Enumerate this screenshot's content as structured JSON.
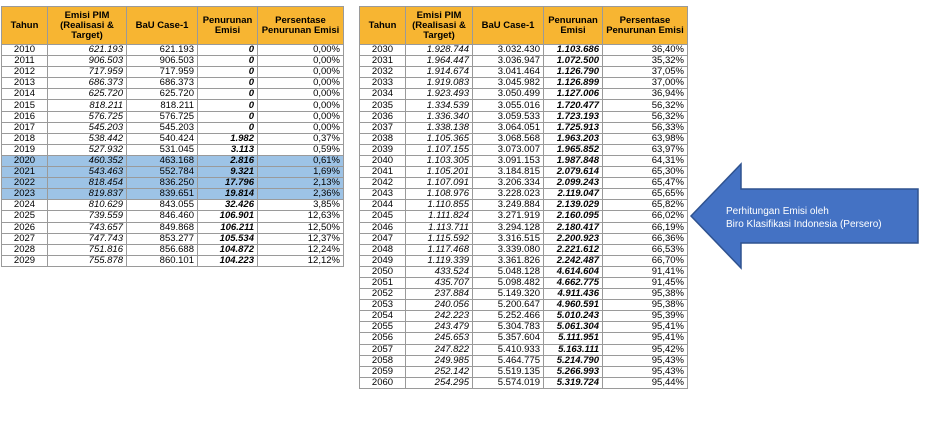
{
  "headers": {
    "tahun": "Tahun",
    "emisi": "Emisi PIM (Realisasi & Target)",
    "bau": "BaU Case-1",
    "penurunan": "Penurunan Emisi",
    "persen": "Persentase Penurunan Emisi"
  },
  "table_left": [
    {
      "tahun": "2010",
      "emisi": "621.193",
      "bau": "621.193",
      "penurunan": "0",
      "persen": "0,00%",
      "highlight": false
    },
    {
      "tahun": "2011",
      "emisi": "906.503",
      "bau": "906.503",
      "penurunan": "0",
      "persen": "0,00%",
      "highlight": false
    },
    {
      "tahun": "2012",
      "emisi": "717.959",
      "bau": "717.959",
      "penurunan": "0",
      "persen": "0,00%",
      "highlight": false
    },
    {
      "tahun": "2013",
      "emisi": "686.373",
      "bau": "686.373",
      "penurunan": "0",
      "persen": "0,00%",
      "highlight": false
    },
    {
      "tahun": "2014",
      "emisi": "625.720",
      "bau": "625.720",
      "penurunan": "0",
      "persen": "0,00%",
      "highlight": false
    },
    {
      "tahun": "2015",
      "emisi": "818.211",
      "bau": "818.211",
      "penurunan": "0",
      "persen": "0,00%",
      "highlight": false
    },
    {
      "tahun": "2016",
      "emisi": "576.725",
      "bau": "576.725",
      "penurunan": "0",
      "persen": "0,00%",
      "highlight": false
    },
    {
      "tahun": "2017",
      "emisi": "545.203",
      "bau": "545.203",
      "penurunan": "0",
      "persen": "0,00%",
      "highlight": false
    },
    {
      "tahun": "2018",
      "emisi": "538.442",
      "bau": "540.424",
      "penurunan": "1.982",
      "persen": "0,37%",
      "highlight": false
    },
    {
      "tahun": "2019",
      "emisi": "527.932",
      "bau": "531.045",
      "penurunan": "3.113",
      "persen": "0,59%",
      "highlight": false
    },
    {
      "tahun": "2020",
      "emisi": "460.352",
      "bau": "463.168",
      "penurunan": "2.816",
      "persen": "0,61%",
      "highlight": true
    },
    {
      "tahun": "2021",
      "emisi": "543.463",
      "bau": "552.784",
      "penurunan": "9.321",
      "persen": "1,69%",
      "highlight": true
    },
    {
      "tahun": "2022",
      "emisi": "818.454",
      "bau": "836.250",
      "penurunan": "17.796",
      "persen": "2,13%",
      "highlight": true
    },
    {
      "tahun": "2023",
      "emisi": "819.837",
      "bau": "839.651",
      "penurunan": "19.814",
      "persen": "2,36%",
      "highlight": true
    },
    {
      "tahun": "2024",
      "emisi": "810.629",
      "bau": "843.055",
      "penurunan": "32.426",
      "persen": "3,85%",
      "highlight": false
    },
    {
      "tahun": "2025",
      "emisi": "739.559",
      "bau": "846.460",
      "penurunan": "106.901",
      "persen": "12,63%",
      "highlight": false
    },
    {
      "tahun": "2026",
      "emisi": "743.657",
      "bau": "849.868",
      "penurunan": "106.211",
      "persen": "12,50%",
      "highlight": false
    },
    {
      "tahun": "2027",
      "emisi": "747.743",
      "bau": "853.277",
      "penurunan": "105.534",
      "persen": "12,37%",
      "highlight": false
    },
    {
      "tahun": "2028",
      "emisi": "751.816",
      "bau": "856.688",
      "penurunan": "104.872",
      "persen": "12,24%",
      "highlight": false
    },
    {
      "tahun": "2029",
      "emisi": "755.878",
      "bau": "860.101",
      "penurunan": "104.223",
      "persen": "12,12%",
      "highlight": false
    }
  ],
  "table_right": [
    {
      "tahun": "2030",
      "emisi": "1.928.744",
      "bau": "3.032.430",
      "penurunan": "1.103.686",
      "persen": "36,40%"
    },
    {
      "tahun": "2031",
      "emisi": "1.964.447",
      "bau": "3.036.947",
      "penurunan": "1.072.500",
      "persen": "35,32%"
    },
    {
      "tahun": "2032",
      "emisi": "1.914.674",
      "bau": "3.041.464",
      "penurunan": "1.126.790",
      "persen": "37,05%"
    },
    {
      "tahun": "2033",
      "emisi": "1.919.083",
      "bau": "3.045.982",
      "penurunan": "1.126.899",
      "persen": "37,00%"
    },
    {
      "tahun": "2034",
      "emisi": "1.923.493",
      "bau": "3.050.499",
      "penurunan": "1.127.006",
      "persen": "36,94%"
    },
    {
      "tahun": "2035",
      "emisi": "1.334.539",
      "bau": "3.055.016",
      "penurunan": "1.720.477",
      "persen": "56,32%"
    },
    {
      "tahun": "2036",
      "emisi": "1.336.340",
      "bau": "3.059.533",
      "penurunan": "1.723.193",
      "persen": "56,32%"
    },
    {
      "tahun": "2037",
      "emisi": "1.338.138",
      "bau": "3.064.051",
      "penurunan": "1.725.913",
      "persen": "56,33%"
    },
    {
      "tahun": "2038",
      "emisi": "1.105.365",
      "bau": "3.068.568",
      "penurunan": "1.963.203",
      "persen": "63,98%"
    },
    {
      "tahun": "2039",
      "emisi": "1.107.155",
      "bau": "3.073.007",
      "penurunan": "1.965.852",
      "persen": "63,97%"
    },
    {
      "tahun": "2040",
      "emisi": "1.103.305",
      "bau": "3.091.153",
      "penurunan": "1.987.848",
      "persen": "64,31%"
    },
    {
      "tahun": "2041",
      "emisi": "1.105.201",
      "bau": "3.184.815",
      "penurunan": "2.079.614",
      "persen": "65,30%"
    },
    {
      "tahun": "2042",
      "emisi": "1.107.091",
      "bau": "3.206.334",
      "penurunan": "2.099.243",
      "persen": "65,47%"
    },
    {
      "tahun": "2043",
      "emisi": "1.108.976",
      "bau": "3.228.023",
      "penurunan": "2.119.047",
      "persen": "65,65%"
    },
    {
      "tahun": "2044",
      "emisi": "1.110.855",
      "bau": "3.249.884",
      "penurunan": "2.139.029",
      "persen": "65,82%"
    },
    {
      "tahun": "2045",
      "emisi": "1.111.824",
      "bau": "3.271.919",
      "penurunan": "2.160.095",
      "persen": "66,02%"
    },
    {
      "tahun": "2046",
      "emisi": "1.113.711",
      "bau": "3.294.128",
      "penurunan": "2.180.417",
      "persen": "66,19%"
    },
    {
      "tahun": "2047",
      "emisi": "1.115.592",
      "bau": "3.316.515",
      "penurunan": "2.200.923",
      "persen": "66,36%"
    },
    {
      "tahun": "2048",
      "emisi": "1.117.468",
      "bau": "3.339.080",
      "penurunan": "2.221.612",
      "persen": "66,53%"
    },
    {
      "tahun": "2049",
      "emisi": "1.119.339",
      "bau": "3.361.826",
      "penurunan": "2.242.487",
      "persen": "66,70%"
    },
    {
      "tahun": "2050",
      "emisi": "433.524",
      "bau": "5.048.128",
      "penurunan": "4.614.604",
      "persen": "91,41%"
    },
    {
      "tahun": "2051",
      "emisi": "435.707",
      "bau": "5.098.482",
      "penurunan": "4.662.775",
      "persen": "91,45%"
    },
    {
      "tahun": "2052",
      "emisi": "237.884",
      "bau": "5.149.320",
      "penurunan": "4.911.436",
      "persen": "95,38%"
    },
    {
      "tahun": "2053",
      "emisi": "240.056",
      "bau": "5.200.647",
      "penurunan": "4.960.591",
      "persen": "95,38%"
    },
    {
      "tahun": "2054",
      "emisi": "242.223",
      "bau": "5.252.466",
      "penurunan": "5.010.243",
      "persen": "95,39%"
    },
    {
      "tahun": "2055",
      "emisi": "243.479",
      "bau": "5.304.783",
      "penurunan": "5.061.304",
      "persen": "95,41%"
    },
    {
      "tahun": "2056",
      "emisi": "245.653",
      "bau": "5.357.604",
      "penurunan": "5.111.951",
      "persen": "95,41%"
    },
    {
      "tahun": "2057",
      "emisi": "247.822",
      "bau": "5.410.933",
      "penurunan": "5.163.111",
      "persen": "95,42%"
    },
    {
      "tahun": "2058",
      "emisi": "249.985",
      "bau": "5.464.775",
      "penurunan": "5.214.790",
      "persen": "95,43%"
    },
    {
      "tahun": "2059",
      "emisi": "252.142",
      "bau": "5.519.135",
      "penurunan": "5.266.993",
      "persen": "95,43%"
    },
    {
      "tahun": "2060",
      "emisi": "254.295",
      "bau": "5.574.019",
      "penurunan": "5.319.724",
      "persen": "95,44%"
    }
  ],
  "callout": {
    "line1": "Perhitungan Emisi oleh",
    "line2": "Biro Klasifikasi Indonesia (Persero)",
    "fill_color": "#4472c4",
    "stroke_color": "#2f528f"
  },
  "colors": {
    "header_bg": "#f7b532",
    "highlight_bg": "#9dc3e6"
  }
}
